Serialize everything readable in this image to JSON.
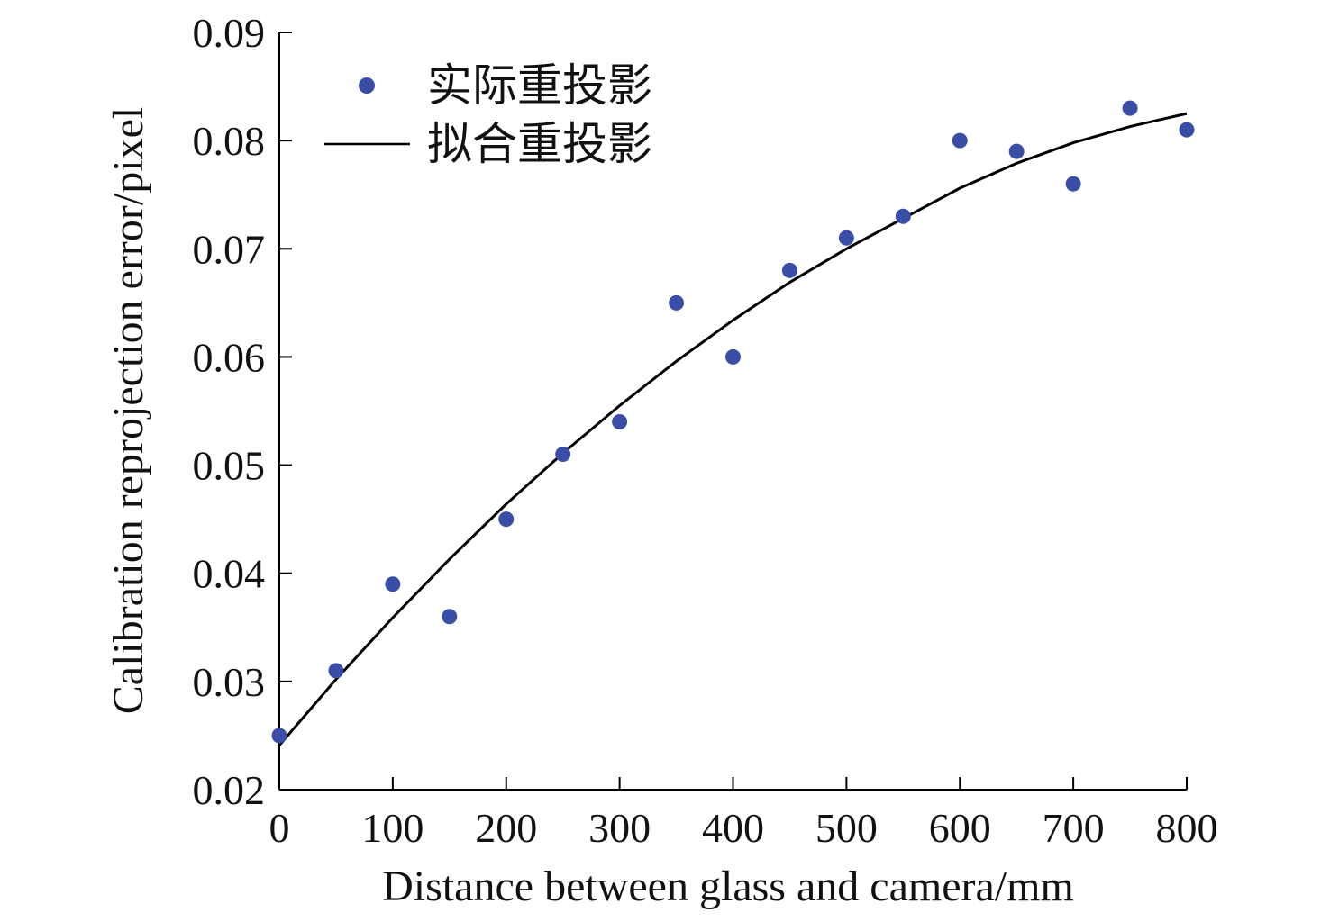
{
  "chart_data": {
    "type": "scatter",
    "xlabel": "Distance between glass and camera/mm",
    "ylabel": "Calibration reprojection error/pixel",
    "xlim": [
      0,
      800
    ],
    "ylim": [
      0.02,
      0.09
    ],
    "xticks": [
      "0",
      "100",
      "200",
      "300",
      "400",
      "500",
      "600",
      "700",
      "800"
    ],
    "yticks": [
      "0.02",
      "0.03",
      "0.04",
      "0.05",
      "0.06",
      "0.07",
      "0.08",
      "0.09"
    ],
    "grid": false,
    "legend_position": "top-left",
    "series": [
      {
        "name": "实际重投影",
        "kind": "scatter",
        "color": "#3a4ea8",
        "points": [
          {
            "x": 0,
            "y": 0.025
          },
          {
            "x": 50,
            "y": 0.031
          },
          {
            "x": 100,
            "y": 0.039
          },
          {
            "x": 150,
            "y": 0.036
          },
          {
            "x": 200,
            "y": 0.045
          },
          {
            "x": 250,
            "y": 0.051
          },
          {
            "x": 300,
            "y": 0.054
          },
          {
            "x": 350,
            "y": 0.065
          },
          {
            "x": 400,
            "y": 0.06
          },
          {
            "x": 450,
            "y": 0.068
          },
          {
            "x": 500,
            "y": 0.071
          },
          {
            "x": 550,
            "y": 0.073
          },
          {
            "x": 600,
            "y": 0.08
          },
          {
            "x": 650,
            "y": 0.079
          },
          {
            "x": 700,
            "y": 0.076
          },
          {
            "x": 750,
            "y": 0.083
          },
          {
            "x": 800,
            "y": 0.081
          }
        ]
      },
      {
        "name": "拟合重投影",
        "kind": "line",
        "color": "#000000",
        "points": [
          {
            "x": 0,
            "y": 0.0241
          },
          {
            "x": 50,
            "y": 0.0302
          },
          {
            "x": 100,
            "y": 0.0359
          },
          {
            "x": 150,
            "y": 0.0413
          },
          {
            "x": 200,
            "y": 0.0464
          },
          {
            "x": 250,
            "y": 0.0511
          },
          {
            "x": 300,
            "y": 0.0555
          },
          {
            "x": 350,
            "y": 0.0596
          },
          {
            "x": 400,
            "y": 0.0634
          },
          {
            "x": 450,
            "y": 0.0669
          },
          {
            "x": 500,
            "y": 0.07
          },
          {
            "x": 550,
            "y": 0.0728
          },
          {
            "x": 600,
            "y": 0.0756
          },
          {
            "x": 650,
            "y": 0.0779
          },
          {
            "x": 700,
            "y": 0.0798
          },
          {
            "x": 750,
            "y": 0.0813
          },
          {
            "x": 800,
            "y": 0.0825
          }
        ]
      }
    ]
  }
}
